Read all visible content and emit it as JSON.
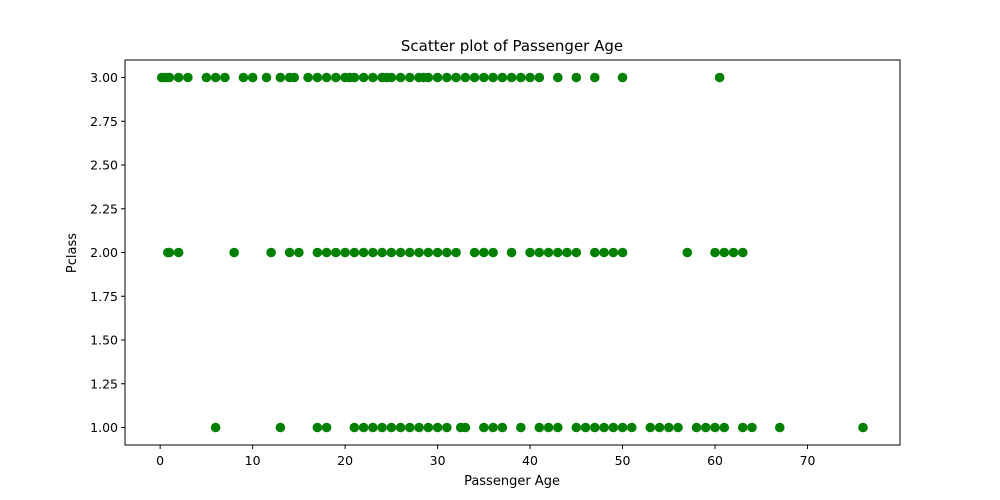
{
  "chart_data": {
    "type": "scatter",
    "title": "Scatter plot of Passenger Age",
    "xlabel": "Passenger Age",
    "ylabel": "Pclass",
    "xlim": [
      -3.8,
      80
    ],
    "ylim": [
      0.9,
      3.1
    ],
    "xticks": [
      0,
      10,
      20,
      30,
      40,
      50,
      60,
      70
    ],
    "yticks": [
      1.0,
      1.25,
      1.5,
      1.75,
      2.0,
      2.25,
      2.5,
      2.75,
      3.0
    ],
    "xtick_labels": [
      "0",
      "10",
      "20",
      "30",
      "40",
      "50",
      "60",
      "70"
    ],
    "ytick_labels": [
      "1.00",
      "1.25",
      "1.50",
      "1.75",
      "2.00",
      "2.25",
      "2.50",
      "2.75",
      "3.00"
    ],
    "grid": false,
    "marker_color": "#008000",
    "series": [
      {
        "x": [
          0.17,
          0.42,
          0.75,
          1,
          2,
          3,
          5,
          6,
          7,
          9,
          10,
          11.5,
          13,
          14,
          14.5,
          16,
          17,
          18,
          19,
          20,
          20.5,
          21,
          22,
          23,
          24,
          24.5,
          25,
          26,
          27,
          28,
          28.5,
          29,
          30,
          31,
          32,
          33,
          34,
          35,
          36,
          37,
          38,
          39,
          40,
          41,
          43,
          45,
          47,
          50,
          60.5,
          0.83,
          1,
          2,
          8,
          12,
          14,
          15,
          17,
          18,
          19,
          20,
          21,
          22,
          23,
          24,
          25,
          26,
          27,
          28,
          29,
          30,
          31,
          32,
          34,
          35,
          36,
          38,
          40,
          41,
          42,
          43,
          44,
          45,
          47,
          48,
          49,
          50,
          57,
          60,
          61,
          62,
          63,
          6,
          13,
          17,
          18,
          21,
          22,
          23,
          24,
          25,
          26,
          27,
          28,
          29,
          30,
          31,
          32.5,
          33,
          35,
          36,
          37,
          39,
          41,
          42,
          43,
          45,
          46,
          47,
          48,
          49,
          50,
          51,
          53,
          54,
          55,
          56,
          58,
          59,
          60,
          61,
          63,
          64,
          67,
          76
        ],
        "y": [
          3,
          3,
          3,
          3,
          3,
          3,
          3,
          3,
          3,
          3,
          3,
          3,
          3,
          3,
          3,
          3,
          3,
          3,
          3,
          3,
          3,
          3,
          3,
          3,
          3,
          3,
          3,
          3,
          3,
          3,
          3,
          3,
          3,
          3,
          3,
          3,
          3,
          3,
          3,
          3,
          3,
          3,
          3,
          3,
          3,
          3,
          3,
          3,
          3,
          2,
          2,
          2,
          2,
          2,
          2,
          2,
          2,
          2,
          2,
          2,
          2,
          2,
          2,
          2,
          2,
          2,
          2,
          2,
          2,
          2,
          2,
          2,
          2,
          2,
          2,
          2,
          2,
          2,
          2,
          2,
          2,
          2,
          2,
          2,
          2,
          2,
          2,
          2,
          2,
          2,
          2,
          1,
          1,
          1,
          1,
          1,
          1,
          1,
          1,
          1,
          1,
          1,
          1,
          1,
          1,
          1,
          1,
          1,
          1,
          1,
          1,
          1,
          1,
          1,
          1,
          1,
          1,
          1,
          1,
          1,
          1,
          1,
          1,
          1,
          1,
          1,
          1,
          1,
          1,
          1,
          1,
          1,
          1,
          1
        ]
      }
    ]
  }
}
